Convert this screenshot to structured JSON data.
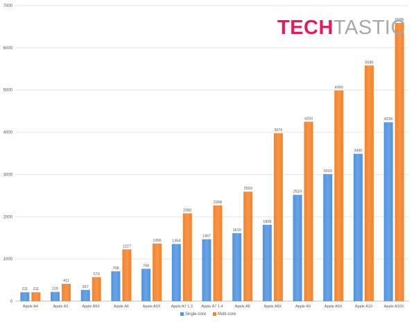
{
  "logo": {
    "part_a": "TECH",
    "part_b": "TASTIC",
    "color_a": "#e8185e",
    "color_b": "#a6a8ab"
  },
  "chart_data": {
    "type": "bar",
    "title": "",
    "xlabel": "",
    "ylabel": "",
    "ylim": [
      0,
      7000
    ],
    "yticks": [
      0,
      1000,
      2000,
      3000,
      4000,
      5000,
      6000,
      7000
    ],
    "grid": true,
    "legend_position": "bottom",
    "categories": [
      "Apple A4",
      "Apple A5",
      "Apple A5X",
      "Apple A6",
      "Apple A6X",
      "Apple A7 1.3",
      "Apple A7 1.4",
      "Apple A8",
      "Apple A8X",
      "Apple A9",
      "Apple A9X",
      "Apple A10",
      "Apple A10X"
    ],
    "series": [
      {
        "name": "Single-core",
        "color": "#4f93e0",
        "values": [
          211,
          220,
          267,
          708,
          768,
          1354,
          1467,
          1610,
          1808,
          2519,
          3010,
          3490,
          4236
        ]
      },
      {
        "name": "Multi-core",
        "color": "#f4822a",
        "values": [
          211,
          411,
          570,
          1227,
          1366,
          2080,
          2268,
          2593,
          3976,
          4250,
          4990,
          5580,
          6589
        ]
      }
    ]
  }
}
